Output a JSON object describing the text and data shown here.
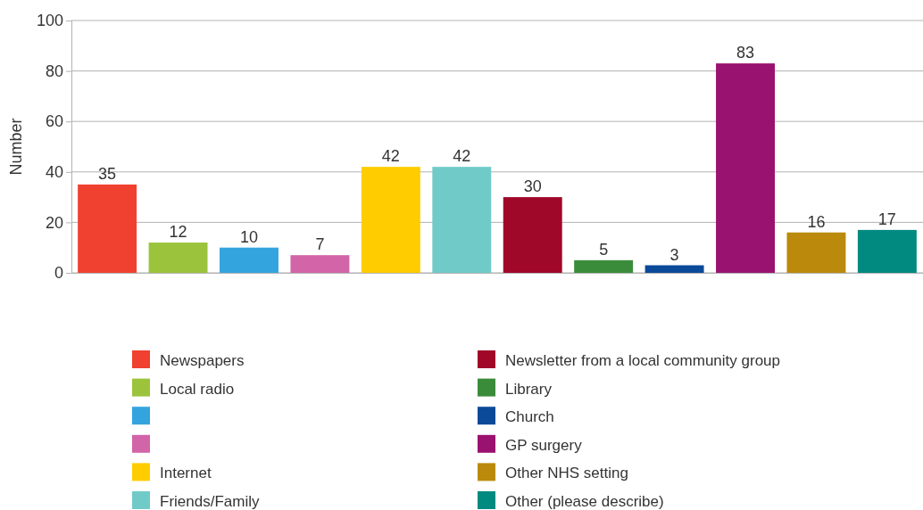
{
  "chart_data": {
    "type": "bar",
    "ylabel": "Number",
    "categories": [
      null,
      null,
      null,
      null,
      null,
      null,
      null,
      null,
      null,
      null,
      null,
      null
    ],
    "series": [
      {
        "name": "Newspapers",
        "color": "#f04030",
        "values": [
          35,
          null,
          null,
          null,
          null,
          null,
          null,
          null,
          null,
          null,
          null,
          null
        ]
      },
      {
        "name": "Local radio",
        "color": "#9bc43c",
        "values": [
          null,
          12,
          null,
          null,
          null,
          null,
          null,
          null,
          null,
          null,
          null,
          null
        ]
      },
      {
        "color": "#34a4de",
        "values": [
          null,
          null,
          10,
          null,
          null,
          null,
          null,
          null,
          null,
          null,
          null,
          null
        ]
      },
      {
        "color": "#d264a8",
        "values": [
          null,
          null,
          null,
          7,
          null,
          null,
          null,
          null,
          null,
          null,
          null,
          null
        ]
      },
      {
        "name": "Internet",
        "color": "#ffcc00",
        "values": [
          null,
          null,
          null,
          null,
          42,
          null,
          null,
          null,
          null,
          null,
          null,
          null
        ]
      },
      {
        "name": "Friends/Family",
        "color": "#70cbc8",
        "values": [
          null,
          null,
          null,
          null,
          null,
          42,
          null,
          null,
          null,
          null,
          null,
          null
        ]
      },
      {
        "name": "Newsletter from a local community group",
        "color": "#a0082a",
        "values": [
          null,
          null,
          null,
          null,
          null,
          null,
          30,
          null,
          null,
          null,
          null,
          null
        ]
      },
      {
        "name": "Library",
        "color": "#3a8c3a",
        "values": [
          null,
          null,
          null,
          null,
          null,
          null,
          null,
          5,
          null,
          null,
          null,
          null
        ]
      },
      {
        "name": "Church",
        "color": "#0a4a98",
        "values": [
          null,
          null,
          null,
          null,
          null,
          null,
          null,
          null,
          3,
          null,
          null,
          null
        ]
      },
      {
        "name": "GP surgery",
        "color": "#9a1270",
        "values": [
          null,
          null,
          null,
          null,
          null,
          null,
          null,
          null,
          null,
          83,
          null,
          null
        ]
      },
      {
        "name": "Other NHS setting",
        "color": "#bb8a0c",
        "values": [
          null,
          null,
          null,
          null,
          null,
          null,
          null,
          null,
          null,
          null,
          16,
          null
        ]
      },
      {
        "name": "Other (please describe)",
        "color": "#008a80",
        "values": [
          null,
          null,
          null,
          null,
          null,
          null,
          null,
          null,
          null,
          null,
          null,
          17
        ]
      }
    ],
    "ylim": [
      0,
      100
    ],
    "yticks": [
      0,
      20,
      40,
      60,
      80,
      100
    ],
    "grid": "y",
    "data_labels": true,
    "legend": "bottom",
    "tick_labels": "y"
  }
}
